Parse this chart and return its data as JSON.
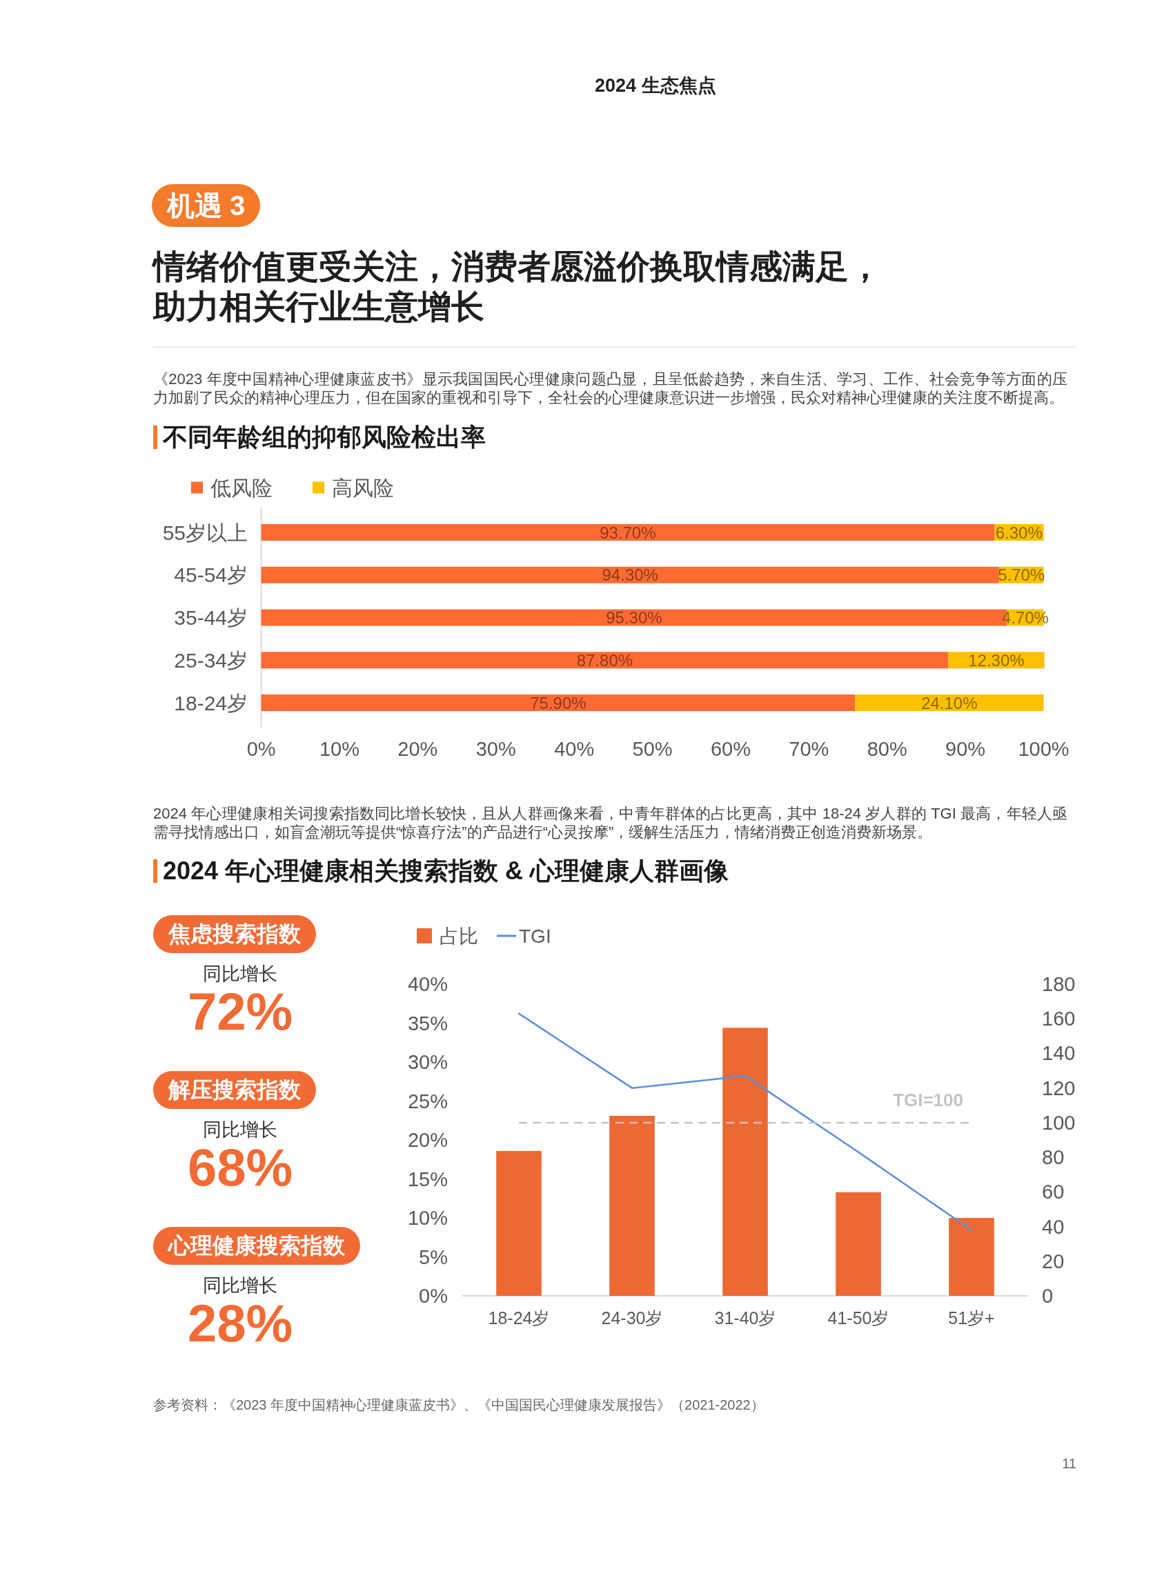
{
  "chart_data": [
    {
      "type": "bar",
      "orientation": "horizontal",
      "stacked": true,
      "title": "不同年龄组的抑郁风险检出率",
      "annotations": [
        "2024 生态焦点",
        "机遇 3",
        "情绪价值更受关注，消费者愿溢价换取情感满足，助力相关行业生意增长",
        "《2023 年度中国精神心理健康蓝皮书》显示我国国民心理健康问题凸显，且呈低龄趋势，来自生活、学习、工作、社会竞争等方面的压力加剧了民众的精神心理压力，但在国家的重视和引导下，全社会的心理健康意识进一步增强，民众对精神心理健康的关注度不断提高。"
      ],
      "categories": [
        "55岁以上",
        "45-54岁",
        "35-44岁",
        "25-34岁",
        "18-24岁"
      ],
      "series": [
        {
          "name": "低风险",
          "color": "#ff6a33",
          "values": [
            93.7,
            94.3,
            95.3,
            87.8,
            75.9
          ],
          "value_labels": [
            "93.70%",
            "94.30%",
            "95.30%",
            "87.80%",
            "75.90%"
          ]
        },
        {
          "name": "高风险",
          "color": "#ffc000",
          "values": [
            6.3,
            5.7,
            4.7,
            12.3,
            24.1
          ],
          "value_labels": [
            "6.30%",
            "5.70%",
            "4.70%",
            "12.30%",
            "24.10%"
          ]
        }
      ],
      "xlim": [
        0,
        100
      ],
      "xticks": [
        {
          "value": 0,
          "label": "0%"
        },
        {
          "value": 10,
          "label": "10%"
        },
        {
          "value": 20,
          "label": "20%"
        },
        {
          "value": 30,
          "label": "30%"
        },
        {
          "value": 40,
          "label": "40%"
        },
        {
          "value": 50,
          "label": "50%"
        },
        {
          "value": 60,
          "label": "60%"
        },
        {
          "value": 70,
          "label": "70%"
        },
        {
          "value": 80,
          "label": "80%"
        },
        {
          "value": 90,
          "label": "90%"
        },
        {
          "value": 100,
          "label": "100%"
        }
      ],
      "legend": "top left"
    },
    {
      "type": "other",
      "annotations": [
        "焦虑搜索指数",
        "同比增长",
        "72%",
        "解压搜索指数",
        "同比增长",
        "68%",
        "心理健康搜索指数",
        "同比增长",
        "28%"
      ]
    },
    {
      "type": "bar",
      "title": "2024 年心理健康相关搜索指数 & 心理健康人群画像",
      "annotations": [
        "2024 年心理健康相关词搜索指数同比增长较快，且从人群画像来看，中青年群体的占比更高，其中 18-24 岁人群的 TGI 最高，年轻人亟需寻找情感出口，如盲盒潮玩等提供“惊喜疗法”的产品进行“心灵按摩”，缓解生活压力，情绪消费正创造消费新场景。",
        "参考资料：《2023 年度中国精神心理健康蓝皮书》、《中国国民心理健康发展报告》（2021-2022）",
        "11"
      ],
      "categories": [
        "18-24岁",
        "24-30岁",
        "31-40岁",
        "41-50岁",
        "51岁+"
      ],
      "series": [
        {
          "name": "占比",
          "type": "bar",
          "color": "#ec6934",
          "values": [
            18.6,
            23.1,
            34.4,
            13.3,
            10.0
          ]
        },
        {
          "name": "TGI",
          "type": "line",
          "axis": "y2",
          "color": "#5b8fdb",
          "values": [
            163,
            120,
            127,
            83,
            38
          ]
        }
      ],
      "ylim": [
        0,
        40
      ],
      "yticks": [
        {
          "value": 0,
          "label": "0%"
        },
        {
          "value": 5,
          "label": "5%"
        },
        {
          "value": 10,
          "label": "10%"
        },
        {
          "value": 15,
          "label": "15%"
        },
        {
          "value": 20,
          "label": "20%"
        },
        {
          "value": 25,
          "label": "25%"
        },
        {
          "value": 30,
          "label": "30%"
        },
        {
          "value": 35,
          "label": "35%"
        },
        {
          "value": 40,
          "label": "40%"
        }
      ],
      "y2lim": [
        0,
        180
      ],
      "y2ticks": [
        0,
        20,
        40,
        60,
        80,
        100,
        120,
        140,
        160,
        180
      ],
      "ref_lines": [
        {
          "axis": "y2",
          "value": 100,
          "label": "TGI=100",
          "color": "#c4c4c4",
          "line_style": "dashed"
        }
      ],
      "legend": "top left"
    }
  ]
}
